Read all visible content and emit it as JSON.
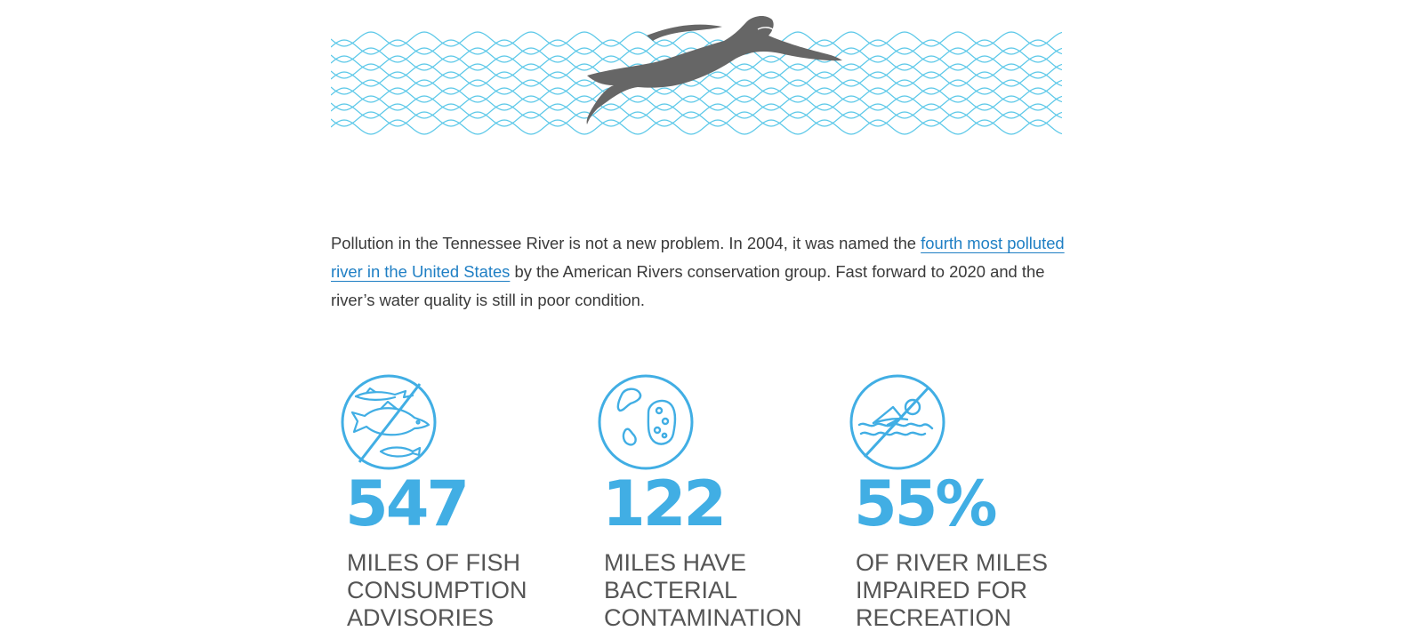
{
  "colors": {
    "accent": "#41aee4",
    "wave": "#5bc8e8",
    "swimmer": "#666666",
    "link": "#1f7fc4",
    "body_text": "#3a3a3a",
    "stat_text": "#555555"
  },
  "intro": {
    "before_link": "Pollution in the Tennessee River is not a new problem. In 2004, it was named the ",
    "link_text": "fourth most polluted river in the United States",
    "after_link": " by the American Rivers conservation group. Fast forward to 2020 and the river’s water quality is still in poor condition."
  },
  "stats": [
    {
      "icon": "no-fish-icon",
      "number": "547",
      "lines": [
        "MILES OF FISH",
        "CONSUMPTION",
        "ADVISORIES"
      ]
    },
    {
      "icon": "bacteria-icon",
      "number": "122",
      "lines": [
        "MILES HAVE",
        "BACTERIAL",
        "CONTAMINATION"
      ]
    },
    {
      "icon": "no-swimming-icon",
      "number": "55%",
      "lines": [
        "OF RIVER MILES",
        "IMPAIRED FOR",
        "RECREATION"
      ]
    }
  ]
}
